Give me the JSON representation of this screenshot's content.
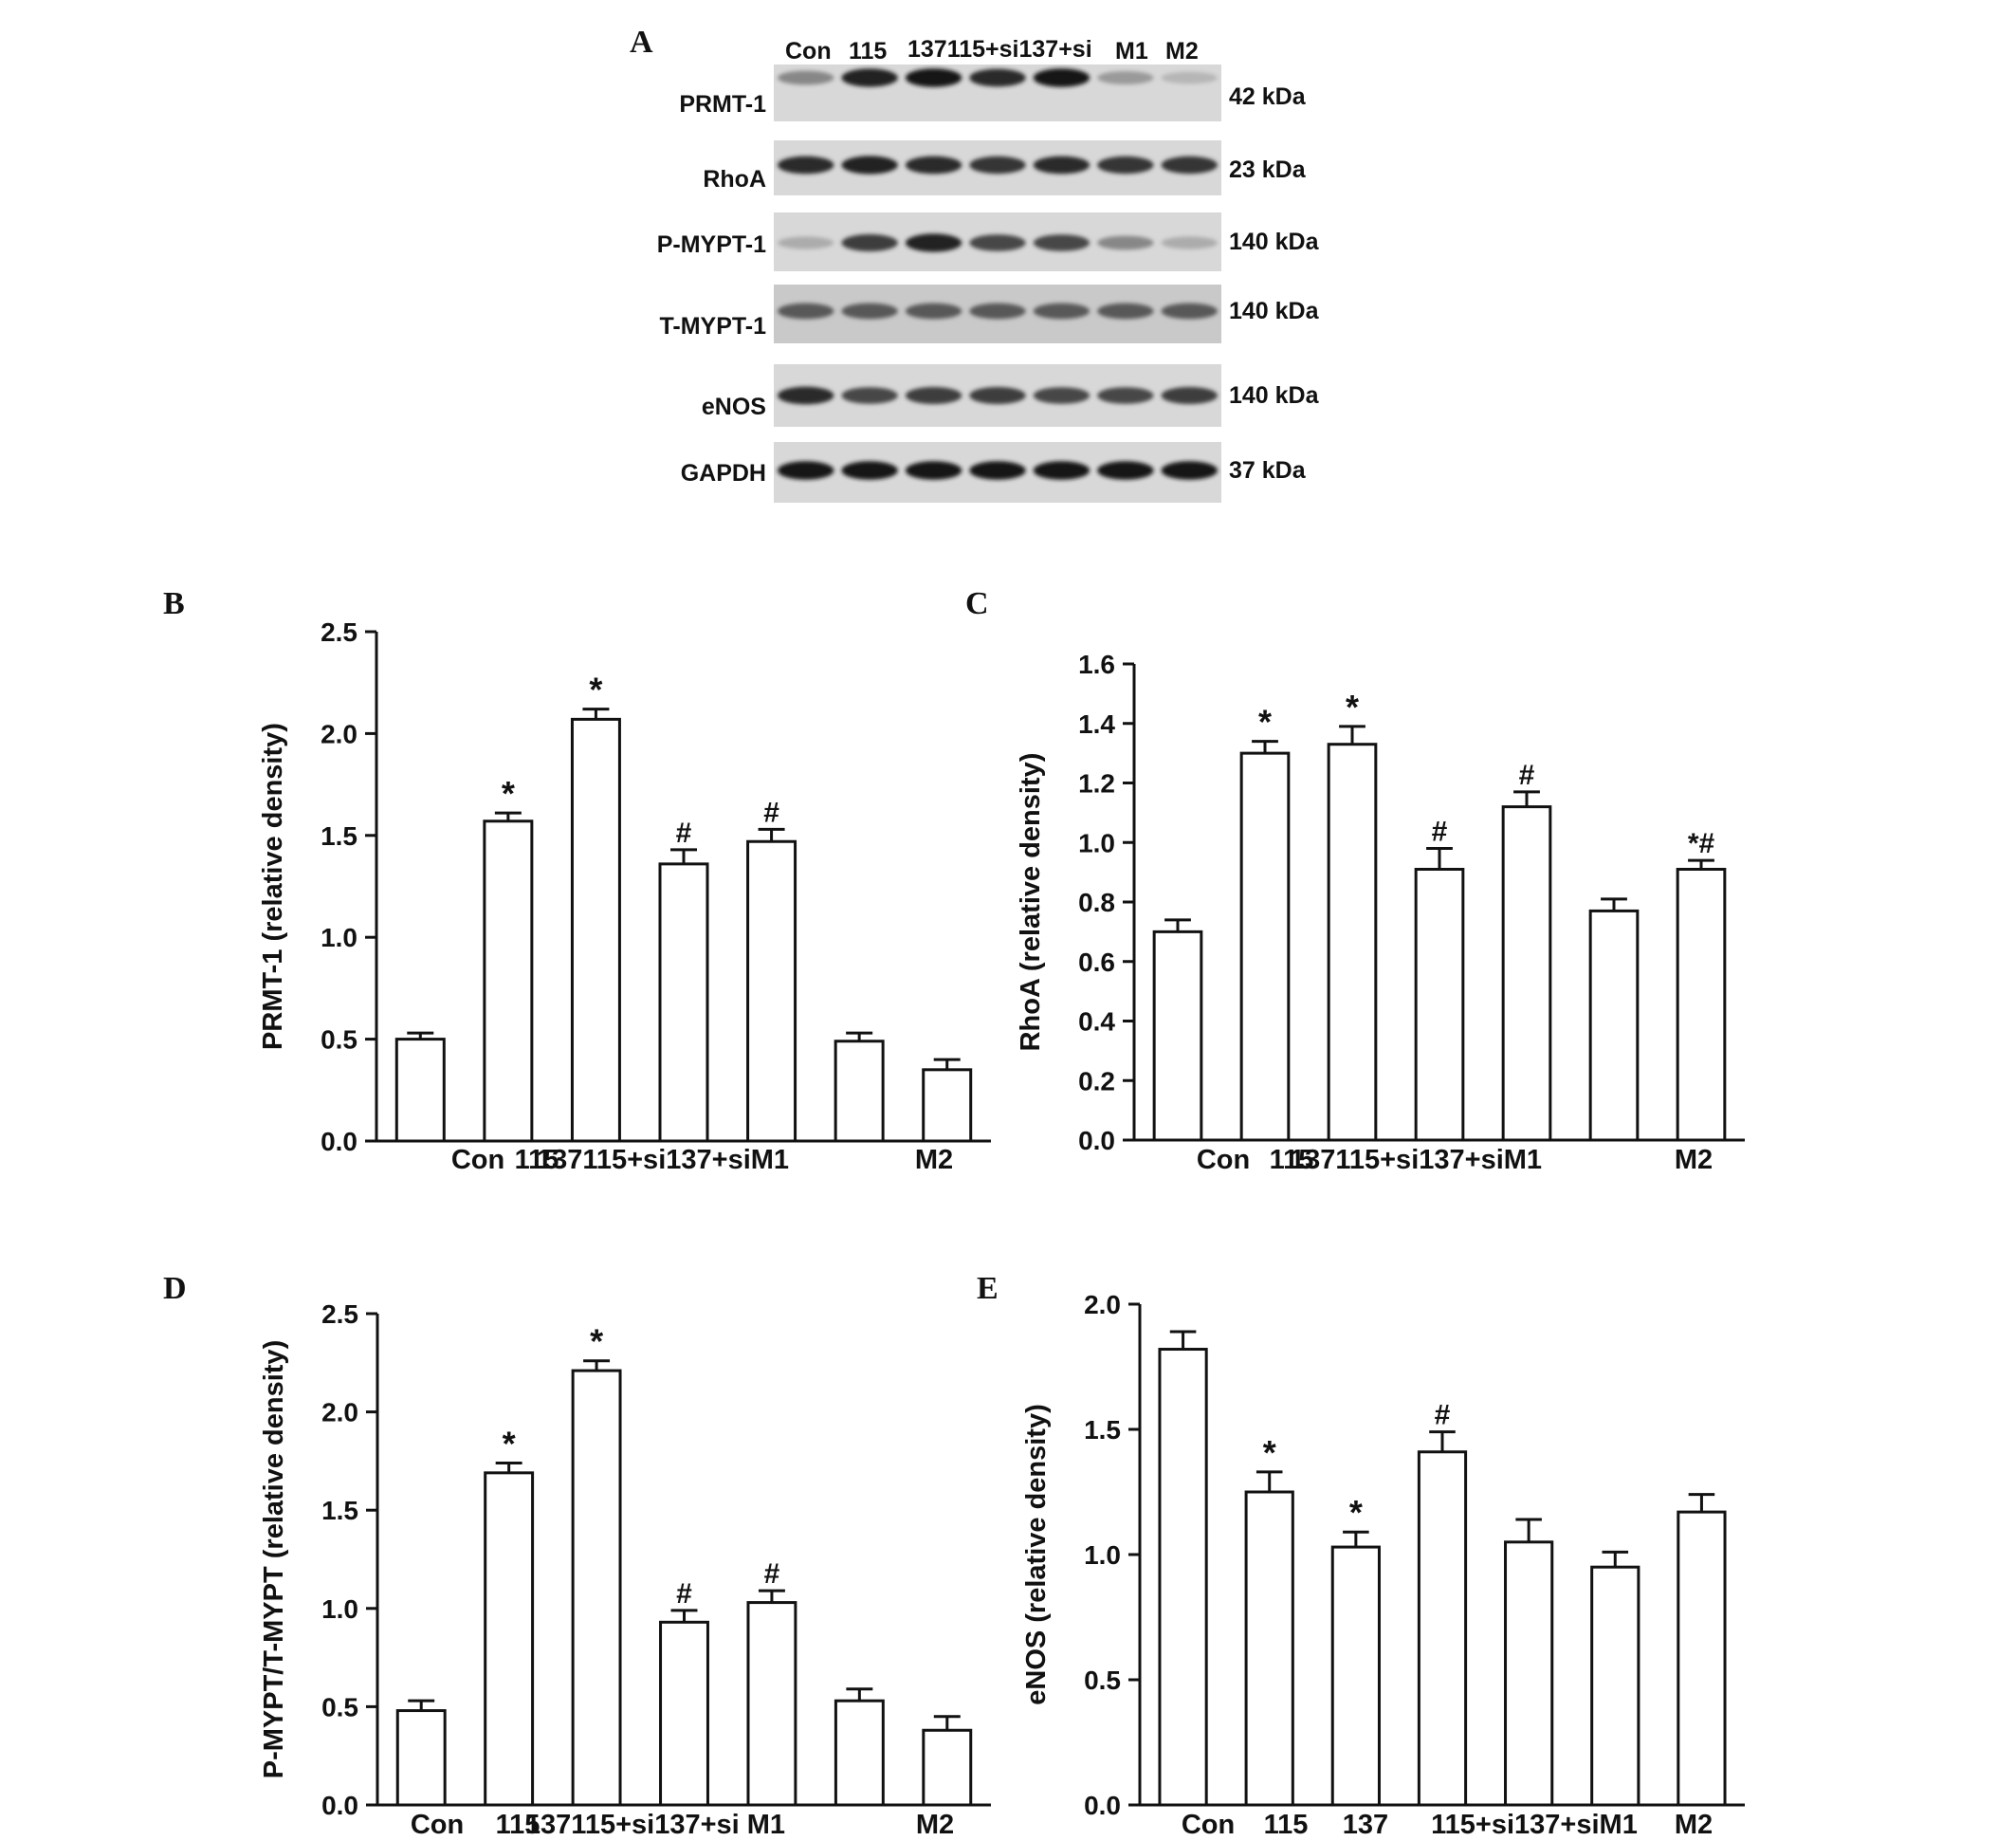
{
  "panels": [
    "A",
    "B",
    "C",
    "D",
    "E"
  ],
  "blot": {
    "lanes": [
      "Con",
      "115",
      "137115+si137+si",
      "M1",
      "M2"
    ],
    "lane_count": 7,
    "rows": [
      {
        "protein": "PRMT-1",
        "size": "42 kDa",
        "intensity": [
          0.35,
          0.9,
          0.95,
          0.85,
          0.95,
          0.25,
          0.1
        ]
      },
      {
        "protein": "RhoA",
        "size": "23 kDa",
        "intensity": [
          0.85,
          0.9,
          0.85,
          0.8,
          0.85,
          0.8,
          0.8
        ]
      },
      {
        "protein": "P-MYPT-1",
        "size": "140 kDa",
        "intensity": [
          0.15,
          0.75,
          0.9,
          0.7,
          0.7,
          0.35,
          0.15
        ]
      },
      {
        "protein": "T-MYPT-1",
        "size": "140 kDa",
        "intensity": [
          0.6,
          0.6,
          0.6,
          0.6,
          0.6,
          0.6,
          0.6
        ]
      },
      {
        "protein": "eNOS",
        "size": "140 kDa",
        "intensity": [
          0.85,
          0.7,
          0.75,
          0.75,
          0.7,
          0.7,
          0.75
        ]
      },
      {
        "protein": "GAPDH",
        "size": "37 kDa",
        "intensity": [
          0.95,
          0.95,
          0.95,
          0.95,
          0.95,
          0.95,
          0.95
        ]
      }
    ]
  },
  "chart_data": [
    {
      "panel": "B",
      "type": "bar",
      "categories": [
        "Con",
        "115",
        "137",
        "115+si",
        "137+si",
        "M1",
        "M2"
      ],
      "tick_labels": [
        "Con",
        "115",
        "137115+si137+siM1",
        "M2"
      ],
      "values": [
        0.5,
        1.57,
        2.07,
        1.36,
        1.47,
        0.49,
        0.35
      ],
      "errors": [
        0.03,
        0.04,
        0.05,
        0.07,
        0.06,
        0.04,
        0.05
      ],
      "annotations": [
        "",
        "*",
        "*",
        "#",
        "#",
        "",
        ""
      ],
      "ylabel": "PRMT-1 (relative density)",
      "ylim": [
        0,
        2.5
      ],
      "yticks": [
        "0.0",
        "0.5",
        "1.0",
        "1.5",
        "2.0",
        "2.5"
      ]
    },
    {
      "panel": "C",
      "type": "bar",
      "categories": [
        "Con",
        "115",
        "137",
        "115+si",
        "137+si",
        "M1",
        "M2"
      ],
      "tick_labels": [
        "Con",
        "115",
        "137115+si137+siM1",
        "M2"
      ],
      "values": [
        0.7,
        1.3,
        1.33,
        0.91,
        1.12,
        0.77,
        0.91
      ],
      "errors": [
        0.04,
        0.04,
        0.06,
        0.07,
        0.05,
        0.04,
        0.03
      ],
      "annotations": [
        "",
        "*",
        "*",
        "#",
        "#",
        "",
        "*#"
      ],
      "ylabel": "RhoA (relative density)",
      "ylim": [
        0,
        1.6
      ],
      "yticks": [
        "0.0",
        "0.2",
        "0.4",
        "0.6",
        "0.8",
        "1.0",
        "1.2",
        "1.4",
        "1.6"
      ]
    },
    {
      "panel": "D",
      "type": "bar",
      "categories": [
        "Con",
        "115",
        "137",
        "115+si",
        "137+si",
        "M1",
        "M2"
      ],
      "tick_labels": [
        "Con",
        "115",
        "137115+si137+si M1",
        "M2"
      ],
      "values": [
        0.48,
        1.69,
        2.21,
        0.93,
        1.03,
        0.53,
        0.38
      ],
      "errors": [
        0.05,
        0.05,
        0.05,
        0.06,
        0.06,
        0.06,
        0.07
      ],
      "annotations": [
        "",
        "*",
        "*",
        "#",
        "#",
        "",
        ""
      ],
      "ylabel": "P-MYPT/T-MYPT (relative density)",
      "ylim": [
        0,
        2.5
      ],
      "yticks": [
        "0.0",
        "0.5",
        "1.0",
        "1.5",
        "2.0",
        "2.5"
      ]
    },
    {
      "panel": "E",
      "type": "bar",
      "categories": [
        "Con",
        "115",
        "137",
        "115+si",
        "137+si",
        "M1",
        "M2"
      ],
      "tick_labels": [
        "Con",
        "115",
        "137",
        "115+si137+siM1",
        "M2"
      ],
      "values": [
        1.82,
        1.25,
        1.03,
        1.41,
        1.05,
        0.95,
        1.17
      ],
      "errors": [
        0.07,
        0.08,
        0.06,
        0.08,
        0.09,
        0.06,
        0.07
      ],
      "annotations": [
        "",
        "*",
        "*",
        "#",
        "",
        "",
        ""
      ],
      "ylabel": "eNOS (relative density)",
      "ylim": [
        0,
        2.0
      ],
      "yticks": [
        "0.0",
        "0.5",
        "1.0",
        "1.5",
        "2.0"
      ]
    }
  ]
}
